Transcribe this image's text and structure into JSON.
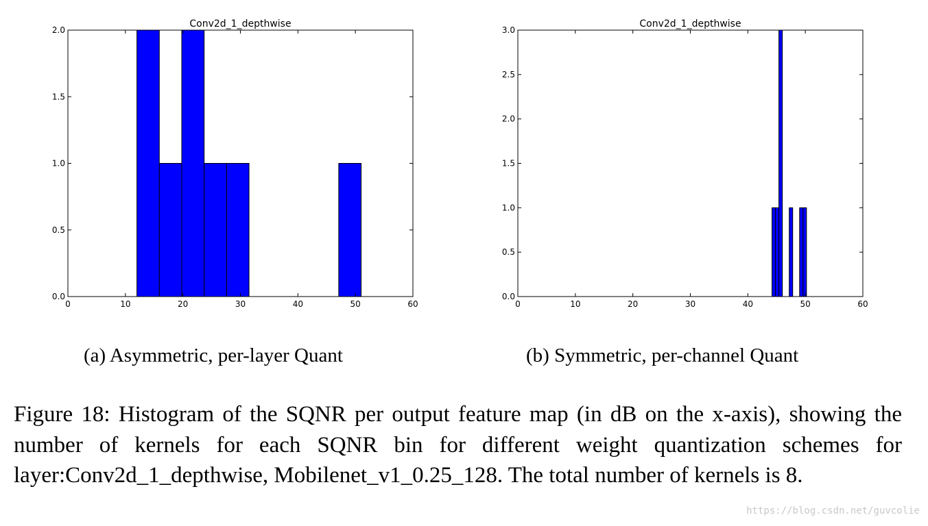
{
  "chart_data": [
    {
      "type": "bar",
      "title": "Conv2d_1_depthwise",
      "xlabel": "",
      "ylabel": "",
      "xlim": [
        0,
        60
      ],
      "ylim": [
        0,
        2.0
      ],
      "x_ticks": [
        "0",
        "10",
        "20",
        "30",
        "40",
        "50",
        "60"
      ],
      "y_ticks": [
        "0.0",
        "0.5",
        "1.0",
        "1.5",
        "2.0"
      ],
      "bars": [
        {
          "x0": 12.0,
          "x1": 15.9,
          "value": 2
        },
        {
          "x0": 15.9,
          "x1": 19.8,
          "value": 1
        },
        {
          "x0": 19.8,
          "x1": 23.7,
          "value": 2
        },
        {
          "x0": 23.7,
          "x1": 27.6,
          "value": 1
        },
        {
          "x0": 27.6,
          "x1": 31.5,
          "value": 1
        },
        {
          "x0": 47.1,
          "x1": 51.0,
          "value": 1
        }
      ],
      "bar_color": "#0000ff",
      "grid": false
    },
    {
      "type": "bar",
      "title": "Conv2d_1_depthwise",
      "xlabel": "",
      "ylabel": "",
      "xlim": [
        0,
        60
      ],
      "ylim": [
        0,
        3.0
      ],
      "x_ticks": [
        "0",
        "10",
        "20",
        "30",
        "40",
        "50",
        "60"
      ],
      "y_ticks": [
        "0.0",
        "0.5",
        "1.0",
        "1.5",
        "2.0",
        "2.5",
        "3.0"
      ],
      "bars": [
        {
          "x0": 44.2,
          "x1": 44.8,
          "value": 1
        },
        {
          "x0": 44.8,
          "x1": 45.4,
          "value": 1
        },
        {
          "x0": 45.4,
          "x1": 46.0,
          "value": 3
        },
        {
          "x0": 47.2,
          "x1": 47.8,
          "value": 1
        },
        {
          "x0": 49.0,
          "x1": 49.6,
          "value": 1
        },
        {
          "x0": 49.6,
          "x1": 50.2,
          "value": 1
        }
      ],
      "bar_color": "#0000ff",
      "grid": false
    }
  ],
  "captions": {
    "a": "(a) Asymmetric, per-layer Quant",
    "b": "(b) Symmetric, per-channel Quant"
  },
  "figure_caption": "Figure 18: Histogram of the SQNR per output feature map (in dB on the x-axis), showing the number of kernels for each SQNR bin for different weight quantization schemes for layer:Conv2d_1_depthwise, Mobilenet_v1_0.25_128. The total number of kernels is 8.",
  "watermark": "https://blog.csdn.net/guvcolie"
}
